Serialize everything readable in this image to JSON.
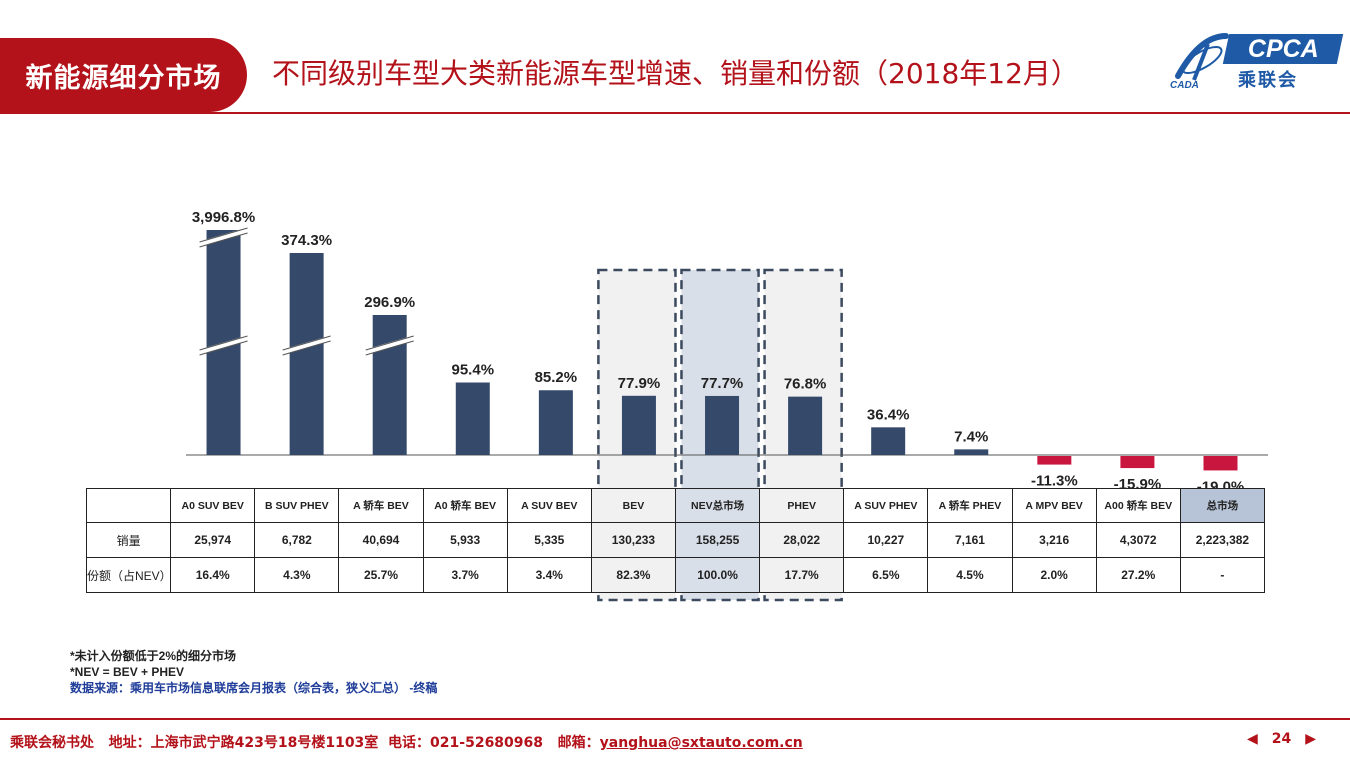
{
  "header": {
    "section": "新能源细分市场",
    "title": "不同级别车型大类新能源车型增速、销量和份额（2018年12月）",
    "logo_text": "CPCA",
    "logo_sub": "乘联会"
  },
  "colors": {
    "brand_red": "#b3121a",
    "bar_positive": "#354a6b",
    "bar_negative": "#c8163f",
    "highlight_box": "#f1f1f1",
    "highlight_total": "#d9dfe8",
    "logo_blue": "#1f5aa6"
  },
  "chart_data": {
    "type": "bar",
    "categories": [
      "A0 SUV BEV",
      "B SUV PHEV",
      "A 轿车 BEV",
      "A0 轿车 BEV",
      "A SUV BEV",
      "BEV",
      "NEV总市场",
      "PHEV",
      "A SUV PHEV",
      "A 轿车 PHEV",
      "A MPV BEV",
      "A00 轿车 BEV",
      "总市场"
    ],
    "values": [
      3996.8,
      374.3,
      296.9,
      95.4,
      85.2,
      77.9,
      77.7,
      76.8,
      36.4,
      7.4,
      -11.3,
      -15.9,
      -19.0
    ],
    "value_labels": [
      "3,996.8%",
      "374.3%",
      "296.9%",
      "95.4%",
      "85.2%",
      "77.9%",
      "77.7%",
      "76.8%",
      "36.4%",
      "7.4%",
      "-11.3%",
      "-15.9%",
      "-19.0%"
    ],
    "broken_axis_bars": [
      "A0 SUV BEV",
      "B SUV PHEV",
      "A 轿车 BEV"
    ],
    "highlighted_categories": [
      "BEV",
      "NEV总市场",
      "PHEV"
    ]
  },
  "table": {
    "headers": [
      "A0 SUV BEV",
      "B SUV PHEV",
      "A 轿车 BEV",
      "A0 轿车 BEV",
      "A SUV BEV",
      "BEV",
      "NEV总市场",
      "PHEV",
      "A SUV PHEV",
      "A 轿车 PHEV",
      "A MPV BEV",
      "A00 轿车 BEV",
      "总市场"
    ],
    "rows": [
      {
        "label": "销量",
        "values": [
          "25,974",
          "6,782",
          "40,694",
          "5,933",
          "5,335",
          "130,233",
          "158,255",
          "28,022",
          "10,227",
          "7,161",
          "3,216",
          "4,3072",
          "2,223,382"
        ]
      },
      {
        "label": "份额（占NEV）",
        "values": [
          "16.4%",
          "4.3%",
          "25.7%",
          "3.7%",
          "3.4%",
          "82.3%",
          "100.0%",
          "17.7%",
          "6.5%",
          "4.5%",
          "2.0%",
          "27.2%",
          "-"
        ]
      }
    ]
  },
  "notes": {
    "line1": "*未计入份额低于2%的细分市场",
    "line2": "*NEV = BEV + PHEV",
    "source": "数据来源：乘用车市场信息联席会月报表（综合表，狭义汇总） -终稿"
  },
  "footer": {
    "org": "乘联会秘书处",
    "address": "地址：上海市武宁路423号18号楼1103室",
    "phone": "电话：021-52680968",
    "email_label": "邮箱：",
    "email": "yanghua@sxtauto.com.cn",
    "page": "24",
    "prev_icon": "triangle-left-icon",
    "next_icon": "triangle-right-icon"
  }
}
